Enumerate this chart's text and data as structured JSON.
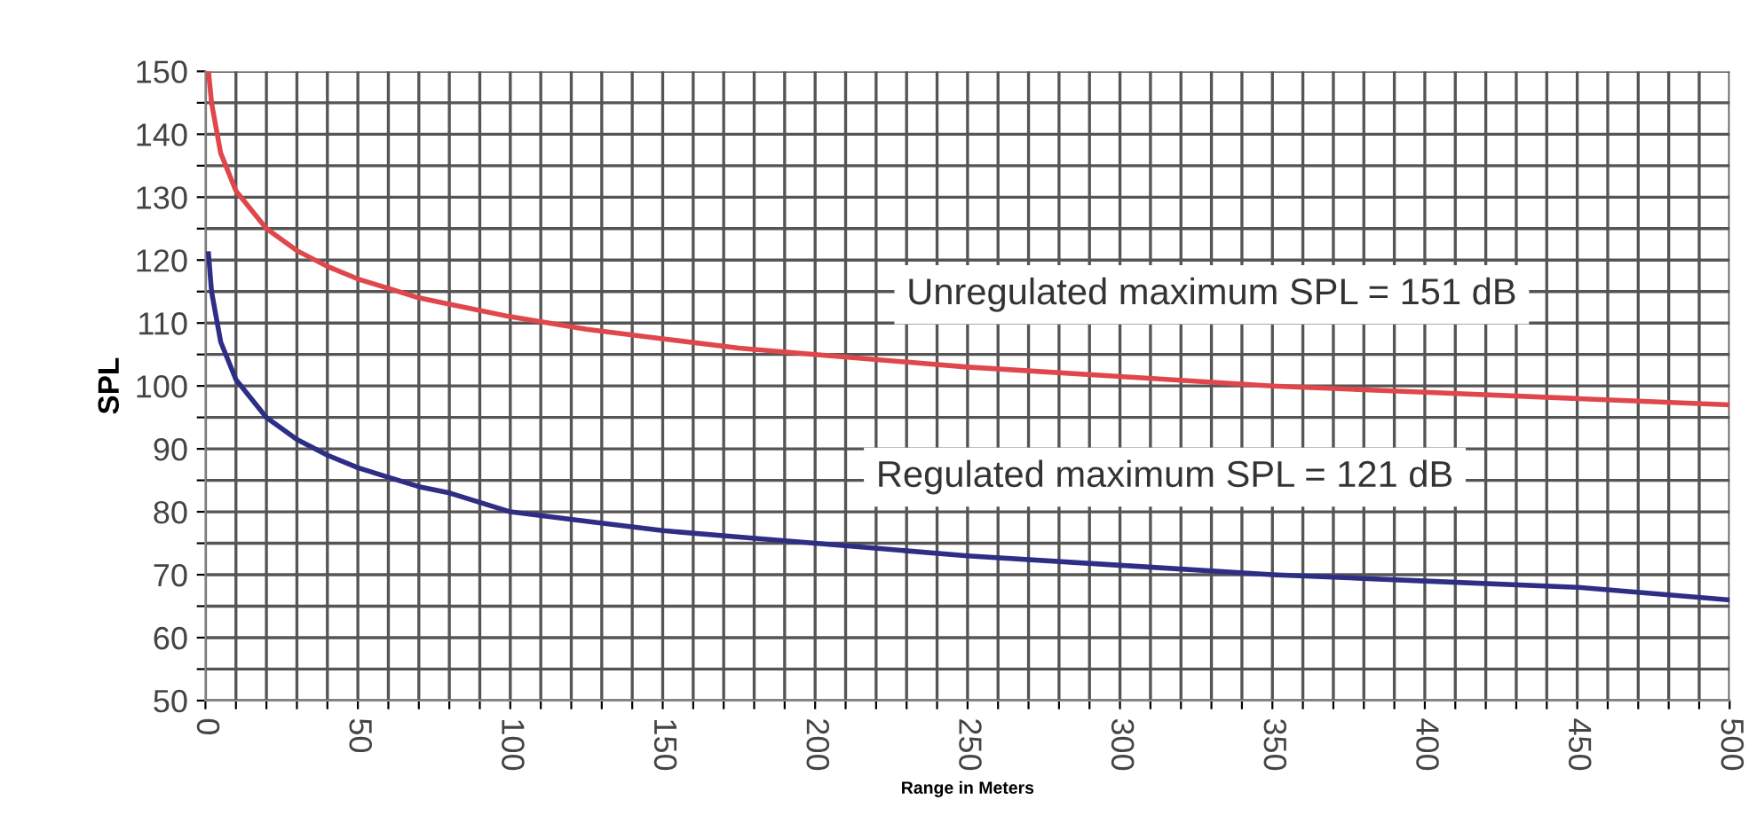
{
  "chart_data": {
    "type": "line",
    "xlabel": "Range in Meters",
    "ylabel": "SPL",
    "annotations": [
      "Unregulated maximum SPL = 151 dB",
      "Regulated maximum SPL = 121 dB"
    ],
    "x": [
      1,
      2,
      5,
      10,
      20,
      30,
      40,
      50,
      60,
      70,
      80,
      100,
      125,
      150,
      175,
      200,
      250,
      300,
      350,
      400,
      450,
      500
    ],
    "series": [
      {
        "color": "#e0474c",
        "values": [
          150,
          145,
          137,
          131,
          125,
          121.5,
          119,
          117,
          115.5,
          114,
          113,
          111,
          109,
          107.5,
          106,
          105,
          103,
          101.5,
          100,
          99,
          98,
          97
        ]
      },
      {
        "color": "#2e2e86",
        "values": [
          121,
          115,
          107,
          101,
          95,
          91.5,
          89,
          87,
          85.5,
          84,
          83,
          80,
          78.5,
          77,
          76,
          75,
          73,
          71.5,
          70,
          69,
          68,
          66
        ]
      }
    ],
    "xlim": [
      0,
      500
    ],
    "ylim": [
      50,
      150
    ],
    "xticks": [
      0,
      {
        "value": 10,
        "label": null
      },
      {
        "value": 20,
        "label": null
      },
      {
        "value": 30,
        "label": null
      },
      {
        "value": 40,
        "label": null
      },
      50,
      {
        "value": 60,
        "label": null
      },
      {
        "value": 70,
        "label": null
      },
      {
        "value": 80,
        "label": null
      },
      {
        "value": 90,
        "label": null
      },
      100,
      {
        "value": 110,
        "label": null
      },
      {
        "value": 120,
        "label": null
      },
      {
        "value": 130,
        "label": null
      },
      {
        "value": 140,
        "label": null
      },
      150,
      {
        "value": 160,
        "label": null
      },
      {
        "value": 170,
        "label": null
      },
      {
        "value": 180,
        "label": null
      },
      {
        "value": 190,
        "label": null
      },
      200,
      {
        "value": 210,
        "label": null
      },
      {
        "value": 220,
        "label": null
      },
      {
        "value": 230,
        "label": null
      },
      {
        "value": 240,
        "label": null
      },
      250,
      {
        "value": 260,
        "label": null
      },
      {
        "value": 270,
        "label": null
      },
      {
        "value": 280,
        "label": null
      },
      {
        "value": 290,
        "label": null
      },
      300,
      {
        "value": 310,
        "label": null
      },
      {
        "value": 320,
        "label": null
      },
      {
        "value": 330,
        "label": null
      },
      {
        "value": 340,
        "label": null
      },
      350,
      {
        "value": 360,
        "label": null
      },
      {
        "value": 370,
        "label": null
      },
      {
        "value": 380,
        "label": null
      },
      {
        "value": 390,
        "label": null
      },
      400,
      {
        "value": 410,
        "label": null
      },
      {
        "value": 420,
        "label": null
      },
      {
        "value": 430,
        "label": null
      },
      {
        "value": 440,
        "label": null
      },
      450,
      {
        "value": 460,
        "label": null
      },
      {
        "value": 470,
        "label": null
      },
      {
        "value": 480,
        "label": null
      },
      {
        "value": 490,
        "label": null
      },
      500
    ],
    "yticks": [
      50,
      {
        "value": 55,
        "label": null
      },
      60,
      {
        "value": 65,
        "label": null
      },
      70,
      {
        "value": 75,
        "label": null
      },
      80,
      {
        "value": 85,
        "label": null
      },
      90,
      {
        "value": 95,
        "label": null
      },
      100,
      {
        "value": 105,
        "label": null
      },
      110,
      {
        "value": 115,
        "label": null
      },
      120,
      {
        "value": 125,
        "label": null
      },
      130,
      {
        "value": 135,
        "label": null
      },
      140,
      {
        "value": 145,
        "label": null
      },
      150
    ],
    "grid": true,
    "line_style": "solid",
    "marker": "none"
  }
}
